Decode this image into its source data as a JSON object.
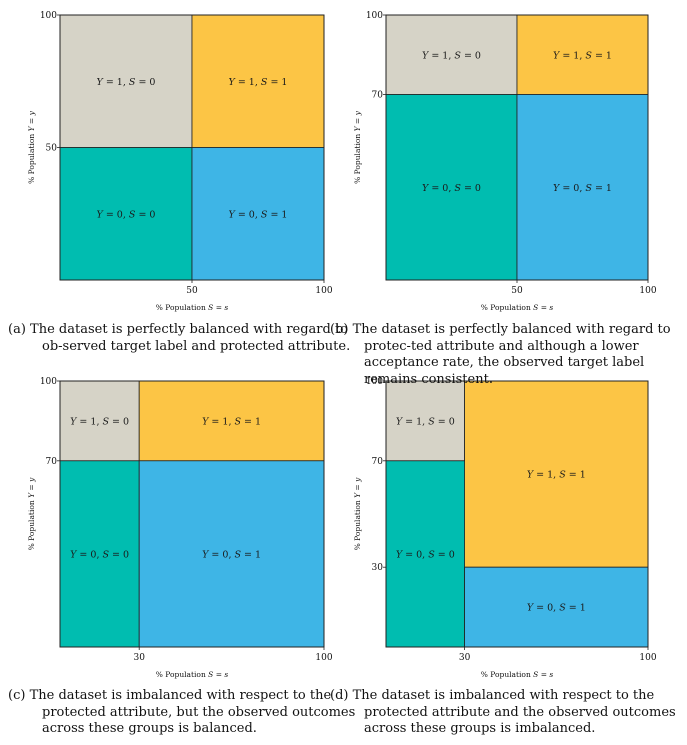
{
  "colors": {
    "gray": "#D6D3C7",
    "yellow": "#FCC545",
    "teal": "#00BDB0",
    "blue": "#3EB5E6"
  },
  "chart_data": [
    {
      "type": "diagram",
      "id": "a",
      "xlabel": "% Population S = s",
      "ylabel": "% Population Y = y",
      "x_ticks": [
        "50",
        "100"
      ],
      "y_ticks": [
        "100",
        "50"
      ],
      "regions": [
        {
          "label": "Y = 1, S = 0",
          "x": [
            0,
            50
          ],
          "y": [
            50,
            100
          ],
          "color": "#D6D3C7"
        },
        {
          "label": "Y = 1, S = 1",
          "x": [
            50,
            100
          ],
          "y": [
            50,
            100
          ],
          "color": "#FCC545"
        },
        {
          "label": "Y = 0, S = 0",
          "x": [
            0,
            50
          ],
          "y": [
            0,
            50
          ],
          "color": "#00BDB0"
        },
        {
          "label": "Y = 0, S = 1",
          "x": [
            50,
            100
          ],
          "y": [
            0,
            50
          ],
          "color": "#3EB5E6"
        }
      ]
    },
    {
      "type": "diagram",
      "id": "b",
      "xlabel": "% Population S = s",
      "ylabel": "% Population Y = y",
      "x_ticks": [
        "50",
        "100"
      ],
      "y_ticks": [
        "100",
        "70"
      ],
      "regions": [
        {
          "label": "Y = 1, S = 0",
          "x": [
            0,
            50
          ],
          "y": [
            70,
            100
          ],
          "color": "#D6D3C7"
        },
        {
          "label": "Y = 1, S = 1",
          "x": [
            50,
            100
          ],
          "y": [
            70,
            100
          ],
          "color": "#FCC545"
        },
        {
          "label": "Y = 0, S = 0",
          "x": [
            0,
            50
          ],
          "y": [
            0,
            70
          ],
          "color": "#00BDB0"
        },
        {
          "label": "Y = 0, S = 1",
          "x": [
            50,
            100
          ],
          "y": [
            0,
            70
          ],
          "color": "#3EB5E6"
        }
      ]
    },
    {
      "type": "diagram",
      "id": "c",
      "xlabel": "% Population S = s",
      "ylabel": "% Population Y = y",
      "x_ticks": [
        "30",
        "100"
      ],
      "y_ticks": [
        "100",
        "70"
      ],
      "regions": [
        {
          "label": "Y = 1, S = 0",
          "x": [
            0,
            30
          ],
          "y": [
            70,
            100
          ],
          "color": "#D6D3C7"
        },
        {
          "label": "Y = 1, S = 1",
          "x": [
            30,
            100
          ],
          "y": [
            70,
            100
          ],
          "color": "#FCC545"
        },
        {
          "label": "Y = 0, S = 0",
          "x": [
            0,
            30
          ],
          "y": [
            0,
            70
          ],
          "color": "#00BDB0"
        },
        {
          "label": "Y = 0, S = 1",
          "x": [
            30,
            100
          ],
          "y": [
            0,
            70
          ],
          "color": "#3EB5E6"
        }
      ]
    },
    {
      "type": "diagram",
      "id": "d",
      "xlabel": "% Population S = s",
      "ylabel": "% Population Y = y",
      "x_ticks": [
        "30",
        "100"
      ],
      "y_ticks": [
        "100",
        "70",
        "30"
      ],
      "regions": [
        {
          "label": "Y = 1, S = 0",
          "x": [
            0,
            30
          ],
          "y": [
            70,
            100
          ],
          "color": "#D6D3C7"
        },
        {
          "label": "Y = 1, S = 1",
          "x": [
            30,
            100
          ],
          "y": [
            30,
            100
          ],
          "color": "#FCC545"
        },
        {
          "label": "Y = 0, S = 0",
          "x": [
            0,
            30
          ],
          "y": [
            0,
            70
          ],
          "color": "#00BDB0"
        },
        {
          "label": "Y = 0, S = 1",
          "x": [
            30,
            100
          ],
          "y": [
            0,
            30
          ],
          "color": "#3EB5E6"
        }
      ]
    }
  ],
  "captions": [
    {
      "label": "(a)",
      "text": "The dataset is perfectly balanced with regard to ob-served target label and protected attribute."
    },
    {
      "label": "(b)",
      "text": "The dataset is perfectly balanced with regard to protec-ted attribute and although a lower acceptance rate, the observed target label remains consistent."
    },
    {
      "label": "(c)",
      "text": "The dataset is imbalanced with respect to the protected attribute, but the observed outcomes across these groups is balanced."
    },
    {
      "label": "(d)",
      "text": "The dataset is imbalanced with respect to the protected attribute and the observed outcomes across these groups is imbalanced."
    }
  ]
}
